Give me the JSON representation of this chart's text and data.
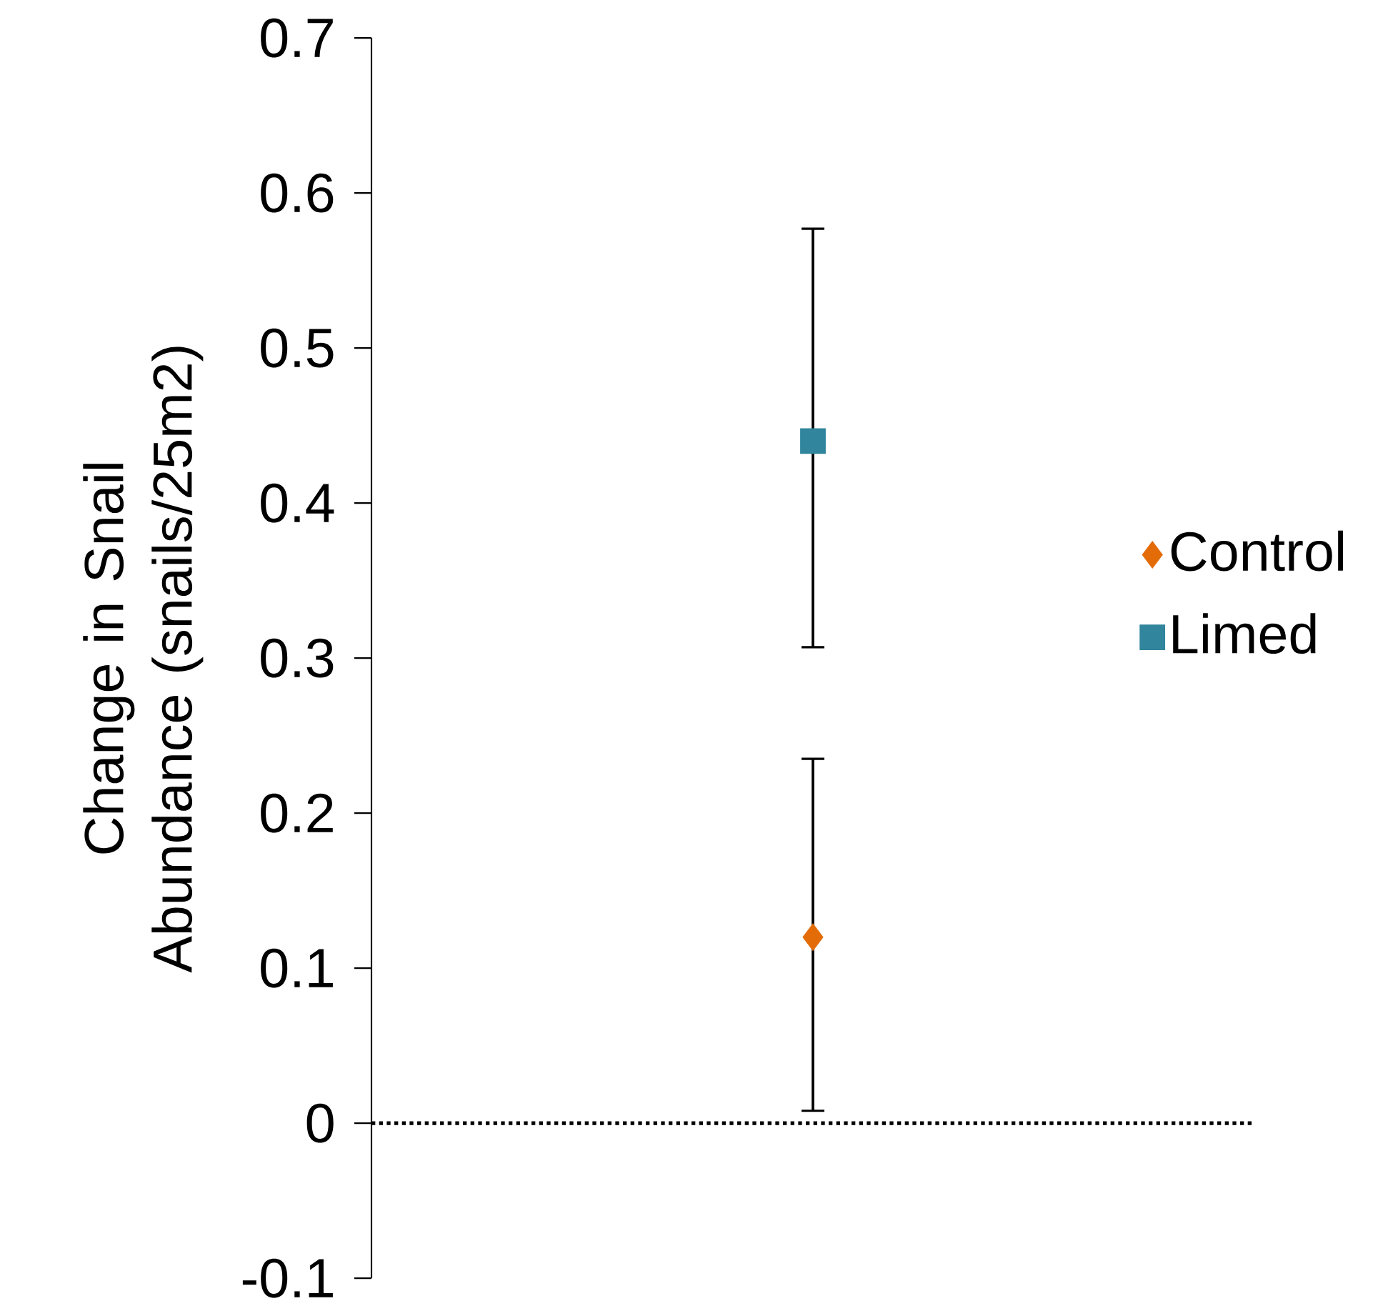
{
  "chart_data": {
    "type": "scatter",
    "ylabel": "Change in Snail Abundance (snails/25m2)",
    "categories": [
      null
    ],
    "series": [
      {
        "name": "Control",
        "color": "#e36c09",
        "marker": "diamond",
        "values": [
          0.12
        ],
        "errors": [
          [
            0.008,
            0.235
          ]
        ]
      },
      {
        "name": "Limed",
        "color": "#31859c",
        "marker": "square",
        "values": [
          0.44
        ],
        "errors": [
          [
            0.307,
            0.577
          ]
        ]
      }
    ],
    "ylim": [
      -0.1,
      0.7
    ],
    "yticks": [
      -0.1,
      0,
      0.1,
      0.2,
      0.3,
      0.4,
      0.5,
      0.6,
      0.7
    ],
    "tick_labels": "y",
    "legend": "right",
    "grid": false,
    "ref_lines": [
      {
        "axis": "y",
        "value": 0,
        "line_style": "dotted",
        "color": "#000000"
      }
    ]
  }
}
